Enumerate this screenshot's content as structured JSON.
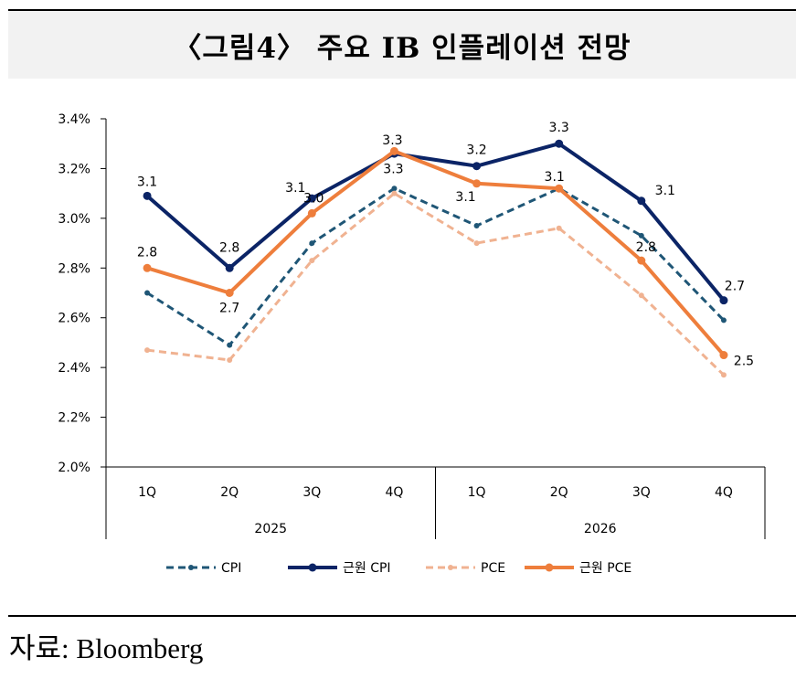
{
  "title": "〈그림4〉 주요 IB 인플레이션 전망",
  "source": "자료: Bloomberg",
  "chart_data": {
    "type": "line",
    "y_ticks": [
      "2.0%",
      "2.2%",
      "2.4%",
      "2.6%",
      "2.8%",
      "3.0%",
      "3.2%",
      "3.4%"
    ],
    "ylim": [
      2.0,
      3.4
    ],
    "categories": [
      "1Q",
      "2Q",
      "3Q",
      "4Q",
      "1Q",
      "2Q",
      "3Q",
      "4Q"
    ],
    "year_groups": [
      {
        "label": "2025",
        "start": 0,
        "end": 3
      },
      {
        "label": "2026",
        "start": 4,
        "end": 7
      }
    ],
    "series": [
      {
        "name": "CPI",
        "color": "#1f5676",
        "style": "dashed",
        "values": [
          2.7,
          2.49,
          2.9,
          3.12,
          2.97,
          3.12,
          2.93,
          2.59
        ],
        "labels": []
      },
      {
        "name": "근원 CPI",
        "color": "#0b2466",
        "style": "solid",
        "values": [
          3.09,
          2.8,
          3.08,
          3.26,
          3.21,
          3.3,
          3.07,
          2.67
        ],
        "labels": [
          "3.1",
          "2.8",
          "3.1",
          "3.3",
          "3.2",
          "3.3",
          "3.1",
          "2.7"
        ]
      },
      {
        "name": "PCE",
        "color": "#f0b291",
        "style": "dashed",
        "values": [
          2.47,
          2.43,
          2.83,
          3.1,
          2.9,
          2.96,
          2.69,
          2.37
        ],
        "labels": []
      },
      {
        "name": "근원 PCE",
        "color": "#ee7e3c",
        "style": "solid",
        "values": [
          2.8,
          2.7,
          3.02,
          3.27,
          3.14,
          3.12,
          2.83,
          2.45
        ],
        "labels": [
          "2.8",
          "2.7",
          "3.0",
          "3.3",
          "3.1",
          "3.1",
          "2.8",
          "2.5"
        ]
      }
    ]
  }
}
